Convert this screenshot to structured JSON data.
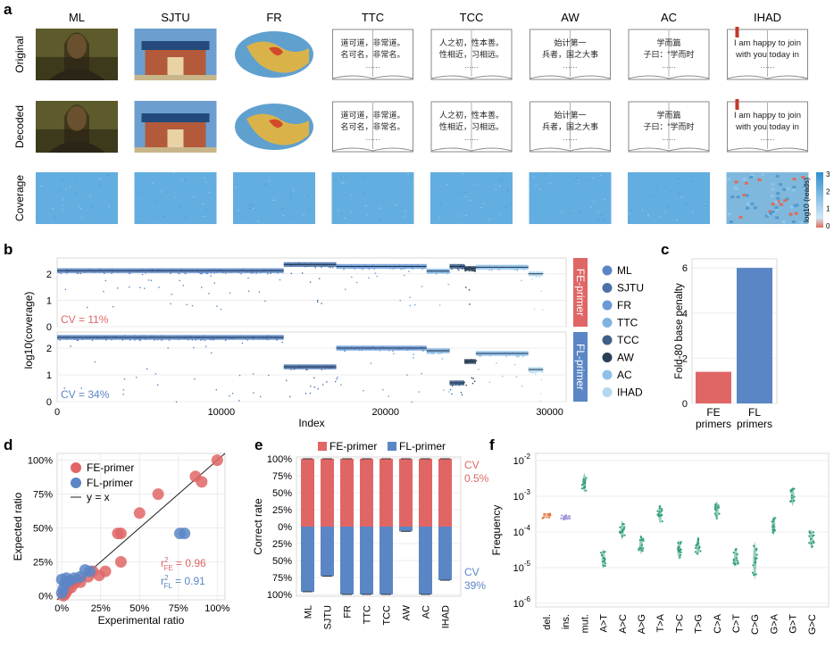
{
  "panel_letters": {
    "a": "a",
    "b": "b",
    "c": "c",
    "d": "d",
    "e": "e",
    "f": "f"
  },
  "panel_a": {
    "columns": [
      "ML",
      "SJTU",
      "FR",
      "TTC",
      "TCC",
      "AW",
      "AC",
      "IHAD"
    ],
    "rows": [
      "Original",
      "Decoded",
      "Coverage"
    ],
    "book_text": {
      "TTC": [
        "道可道，非常道。",
        "名可名，非常名。"
      ],
      "TCC": [
        "人之初，性本善。",
        "性相近，习相远。"
      ],
      "AW": [
        "始计第一",
        "兵者，国之大事"
      ],
      "AC": [
        "学而篇",
        "子曰：“学而时"
      ],
      "IHAD": [
        "I am happy to join",
        "with you today in"
      ]
    },
    "ellipsis": "······",
    "colorbar": {
      "label": "log10 (reads)",
      "ticks": [
        "3",
        "2",
        "1",
        "0"
      ]
    }
  },
  "colors": {
    "fe": "#e06666",
    "fl": "#5b86c5",
    "ML": "#5b86c5",
    "SJTU": "#4a72a8",
    "FR": "#6a9ad6",
    "TTC": "#7fb2e0",
    "TCC": "#3f5f86",
    "AW": "#2b3f57",
    "AC": "#8fc0e8",
    "IHAD": "#b4d8f0"
  },
  "chart_data": [
    {
      "id": "b",
      "type": "scatter",
      "xlabel": "Index",
      "ylabel": "log10(coverage)",
      "xticks": [
        "0",
        "10000",
        "20000",
        "30000"
      ],
      "xlim": [
        0,
        31000
      ],
      "yticks": [
        "0",
        "1",
        "2"
      ],
      "ylim": [
        0,
        2.6
      ],
      "facets": [
        {
          "strip": "FE-primer",
          "cv": "CV = 11%",
          "segments": [
            {
              "name": "ML",
              "start": 0,
              "end": 13800,
              "level": 2.12
            },
            {
              "name": "SJTU",
              "start": 13800,
              "end": 17000,
              "level": 2.35
            },
            {
              "name": "FR",
              "start": 17000,
              "end": 22500,
              "level": 2.28
            },
            {
              "name": "TTC",
              "start": 22500,
              "end": 23900,
              "level": 2.1
            },
            {
              "name": "TCC",
              "start": 23900,
              "end": 24800,
              "level": 2.28
            },
            {
              "name": "AW",
              "start": 24800,
              "end": 25500,
              "level": 2.2
            },
            {
              "name": "AC",
              "start": 25500,
              "end": 28700,
              "level": 2.25
            },
            {
              "name": "IHAD",
              "start": 28700,
              "end": 29600,
              "level": 2.0
            }
          ]
        },
        {
          "strip": "FL-primer",
          "cv": "CV = 34%",
          "segments": [
            {
              "name": "ML",
              "start": 0,
              "end": 13800,
              "level": 2.4
            },
            {
              "name": "SJTU",
              "start": 13800,
              "end": 17000,
              "level": 1.3
            },
            {
              "name": "FR",
              "start": 17000,
              "end": 22500,
              "level": 2.0
            },
            {
              "name": "TTC",
              "start": 22500,
              "end": 23900,
              "level": 1.9
            },
            {
              "name": "TCC",
              "start": 23900,
              "end": 24800,
              "level": 0.7
            },
            {
              "name": "AW",
              "start": 24800,
              "end": 25500,
              "level": 1.5
            },
            {
              "name": "AC",
              "start": 25500,
              "end": 28700,
              "level": 1.8
            },
            {
              "name": "IHAD",
              "start": 28700,
              "end": 29600,
              "level": 1.2
            }
          ]
        }
      ],
      "legend": [
        "ML",
        "SJTU",
        "FR",
        "TTC",
        "TCC",
        "AW",
        "AC",
        "IHAD"
      ]
    },
    {
      "id": "c",
      "type": "bar",
      "categories": [
        "FE\nprimers",
        "FL\nprimers"
      ],
      "values": [
        1.4,
        6.0
      ],
      "ylabel": "Fold-80 base penalty",
      "yticks": [
        "0",
        "2",
        "4",
        "6"
      ],
      "ylim": [
        0,
        6.4
      ]
    },
    {
      "id": "d",
      "type": "scatter",
      "xlabel": "Experimental ratio",
      "ylabel": "Expected ratio",
      "xticks": [
        "0%",
        "25%",
        "50%",
        "75%",
        "100%"
      ],
      "yticks": [
        "0%",
        "25%",
        "50%",
        "75%",
        "100%"
      ],
      "xlim": [
        -0.03,
        1.05
      ],
      "ylim": [
        -0.03,
        1.05
      ],
      "legend": [
        "FE-primer",
        "FL-primer",
        "y = x"
      ],
      "r2": [
        {
          "prefix": "r",
          "sup": "2",
          "sub": "FE",
          "value": " = 0.96"
        },
        {
          "prefix": "r",
          "sup": "2",
          "sub": "FL",
          "value": " = 0.91"
        }
      ],
      "series": [
        {
          "name": "FE-primer",
          "points": [
            [
              1.0,
              1.0
            ],
            [
              0.9,
              0.84
            ],
            [
              0.86,
              0.88
            ],
            [
              0.62,
              0.75
            ],
            [
              0.5,
              0.61
            ],
            [
              0.38,
              0.46
            ],
            [
              0.36,
              0.46
            ],
            [
              0.38,
              0.25
            ],
            [
              0.28,
              0.18
            ],
            [
              0.24,
              0.15
            ],
            [
              0.2,
              0.18
            ],
            [
              0.17,
              0.14
            ],
            [
              0.12,
              0.1
            ],
            [
              0.1,
              0.12
            ],
            [
              0.08,
              0.09
            ],
            [
              0.06,
              0.06
            ],
            [
              0.04,
              0.05
            ],
            [
              0.03,
              0.03
            ],
            [
              0.02,
              0.01
            ],
            [
              0.01,
              0.0
            ]
          ]
        },
        {
          "name": "FL-primer",
          "points": [
            [
              0.79,
              0.46
            ],
            [
              0.76,
              0.46
            ],
            [
              0.18,
              0.18
            ],
            [
              0.15,
              0.19
            ],
            [
              0.12,
              0.14
            ],
            [
              0.08,
              0.13
            ],
            [
              0.05,
              0.11
            ],
            [
              0.03,
              0.13
            ],
            [
              0.02,
              0.09
            ],
            [
              0.0,
              0.12
            ],
            [
              0.01,
              0.05
            ],
            [
              0.0,
              0.02
            ]
          ]
        }
      ]
    },
    {
      "id": "e",
      "type": "bar",
      "categories": [
        "ML",
        "SJTU",
        "FR",
        "TTC",
        "TCC",
        "AW",
        "AC",
        "IHAD"
      ],
      "series": [
        {
          "name": "FE-primer",
          "values": [
            1.0,
            1.0,
            1.0,
            1.0,
            1.0,
            1.0,
            1.0,
            1.0
          ]
        },
        {
          "name": "FL-primer",
          "values": [
            0.96,
            0.73,
            1.0,
            1.0,
            1.0,
            0.07,
            1.0,
            0.79
          ]
        }
      ],
      "ylabel": "Correct rate",
      "yticks": [
        "100%",
        "75%",
        "50%",
        "25%",
        "0%",
        "25%",
        "50%",
        "75%",
        "100%"
      ],
      "annotations": [
        {
          "text": [
            "CV",
            "0.5%"
          ],
          "series": "FE-primer"
        },
        {
          "text": [
            "CV",
            "39%"
          ],
          "series": "FL-primer"
        }
      ]
    },
    {
      "id": "f",
      "type": "scatter",
      "ylabel": "Frequency",
      "categories": [
        "del.",
        "ins.",
        "mut.",
        "A>T",
        "A>C",
        "A>G",
        "T>A",
        "T>C",
        "T>G",
        "C>A",
        "C>T",
        "C>G",
        "G>A",
        "G>T",
        "G>C"
      ],
      "yticks": [
        {
          "base": "10",
          "exp": "-2"
        },
        {
          "base": "10",
          "exp": "-3"
        },
        {
          "base": "10",
          "exp": "-4"
        },
        {
          "base": "10",
          "exp": "-5"
        },
        {
          "base": "10",
          "exp": "-6"
        }
      ],
      "ylog10": [
        -6.1,
        -1.8
      ],
      "medians_log10": [
        -3.55,
        -3.6,
        -2.62,
        -4.75,
        -3.95,
        -4.35,
        -3.5,
        -4.5,
        -4.4,
        -3.4,
        -4.7,
        -4.8,
        -3.82,
        -3.0,
        -4.2
      ],
      "colors": [
        "#e8743b",
        "#9b8fd6",
        "#2e9e7a",
        "#2e9e7a",
        "#2e9e7a",
        "#2e9e7a",
        "#2e9e7a",
        "#2e9e7a",
        "#2e9e7a",
        "#2e9e7a",
        "#2e9e7a",
        "#2e9e7a",
        "#2e9e7a",
        "#2e9e7a",
        "#2e9e7a"
      ]
    }
  ]
}
